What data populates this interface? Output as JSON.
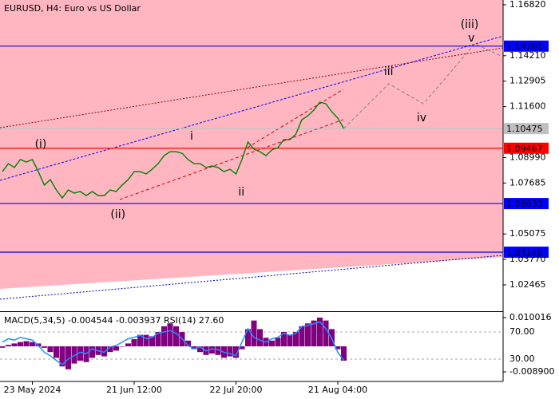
{
  "chart_data": [
    {
      "type": "line",
      "title": "EURUSD, H4:  Euro vs US Dollar",
      "color": "#008000",
      "categories": [
        null,
        null,
        null,
        null,
        null,
        "23 May 2024",
        null,
        null,
        null,
        null,
        null,
        null,
        null,
        null,
        null,
        null,
        null,
        null,
        null,
        null,
        null,
        null,
        "21 Jun 12:00",
        null,
        null,
        null,
        null,
        null,
        null,
        null,
        null,
        null,
        null,
        null,
        null,
        null,
        null,
        null,
        null,
        "22 Jul 20:00",
        null,
        null,
        null,
        null,
        null,
        null,
        null,
        null,
        null,
        null,
        null,
        null,
        null,
        null,
        null,
        null,
        "21 Aug 04:00",
        null
      ],
      "values": [
        1.0827,
        1.0868,
        1.0848,
        1.0889,
        1.0876,
        1.0889,
        1.0827,
        1.0758,
        1.0786,
        1.0733,
        1.0692,
        1.0733,
        1.0717,
        1.0725,
        1.0704,
        1.0725,
        1.0704,
        1.0704,
        1.0733,
        1.0725,
        1.0758,
        1.0786,
        1.0827,
        1.0827,
        1.0815,
        1.0839,
        1.0868,
        1.0909,
        1.0929,
        1.0929,
        1.0921,
        1.0889,
        1.0868,
        1.0868,
        1.0848,
        1.0856,
        1.0848,
        1.0827,
        1.0839,
        1.0815,
        1.0889,
        1.0979,
        1.0942,
        1.0929,
        1.0909,
        1.0938,
        1.095,
        1.0991,
        1.0991,
        1.1019,
        1.1093,
        1.1113,
        1.1142,
        1.1183,
        1.1175,
        1.1134,
        1.1101,
        1.1048
      ],
      "ylim": [
        1.01115,
        1.17065
      ],
      "yticks": [
        {
          "value": 1.1682,
          "label": "1.16820"
        },
        {
          "value": 1.1421,
          "label": "1.14210"
        },
        1.12905,
        {
          "value": 1.116,
          "label": "1.11600"
        },
        {
          "value": 1.0899,
          "label": "1.08990"
        },
        1.07685,
        1.05075,
        {
          "value": 1.0377,
          "label": "1.03770"
        },
        1.02465
      ],
      "grid": false,
      "zone": {
        "color": "#ffb6c1",
        "x": [
          -0.4,
          83.6
        ],
        "values": [
          1.0226,
          1.0389
        ]
      },
      "levels": [
        {
          "value": 1.14701,
          "color": "#0000ff"
        },
        {
          "value": 1.10475,
          "color": "#c0c0c0"
        },
        {
          "value": 1.09467,
          "color": "#ff0000"
        },
        {
          "value": 1.06633,
          "color": "#0000ff"
        },
        {
          "value": 1.0414,
          "label": "1.04140",
          "color": "#0000ff"
        }
      ],
      "lines": [
        {
          "color": "#0000ff",
          "dash": "3,2",
          "x": [
            -0.4,
            83.6
          ],
          "values": [
            1.0782,
            1.1522
          ]
        },
        {
          "color": "#8b0000",
          "dash": "2,2",
          "x": [
            -0.4,
            83.6
          ],
          "values": [
            1.1052,
            1.1461
          ]
        },
        {
          "color": "#0000aa",
          "dash": "2,2",
          "x": [
            -0.4,
            83.6
          ],
          "values": [
            1.0173,
            1.0398
          ]
        },
        {
          "color": "#cc0000",
          "dash": "4,3",
          "x": [
            19.6,
            56.9
          ],
          "values": [
            1.0684,
            1.1093
          ]
        },
        {
          "color": "#cc0000",
          "dash": "4,3",
          "x": [
            40.9,
            56.9
          ],
          "values": [
            1.095,
            1.1248
          ]
        },
        {
          "color": "#808080",
          "dash": "4,3",
          "x": [
            57,
            64.5,
            70.3,
            78.9,
            83.2
          ],
          "values": [
            1.1048,
            1.1277,
            1.1175,
            1.1482,
            1.142
          ]
        }
      ],
      "annotations": [
        {
          "text": "(i)",
          "x": 6.4,
          "y": 1.0966,
          "color": "#cc0000"
        },
        {
          "text": "i",
          "x": 31.6,
          "y": 1.1007,
          "color": "#808080"
        },
        {
          "text": "(ii)",
          "x": 19.3,
          "y": 1.0606,
          "color": "#cc0000"
        },
        {
          "text": "ii",
          "x": 39.9,
          "y": 1.0721,
          "color": "#808080"
        },
        {
          "text": "iii",
          "x": 64.5,
          "y": 1.1338,
          "color": "#808080"
        },
        {
          "text": "iv",
          "x": 70,
          "y": 1.1101,
          "color": "#808080"
        },
        {
          "text": "(iii)",
          "x": 78,
          "y": 1.158,
          "color": "#cc0000"
        },
        {
          "text": "v",
          "x": 78.3,
          "y": 1.151,
          "color": "#808080"
        }
      ]
    },
    {
      "type": "macd",
      "title": "MACD(5,34,5) -0.004544 -0.003937 RSI(14) 27.60",
      "ylim": [
        -0.012236,
        0.011962
      ],
      "yticks": [
        0.010016,
        {
          "value": -0.0089,
          "label": "-0.008900"
        }
      ],
      "y2lim": [
        -3,
        99.4
      ],
      "y2ticks": [
        {
          "value": 70,
          "label": "70.00"
        },
        {
          "value": 30,
          "label": "30.00"
        }
      ],
      "series": [
        {
          "color": "#800080",
          "values": [
            -0.0005,
            0.0005,
            0.001,
            0.0015,
            0.0018,
            0.0015,
            0.001,
            -0.0005,
            -0.002,
            -0.004,
            -0.007,
            -0.008,
            -0.006,
            -0.005,
            -0.0055,
            -0.004,
            -0.003,
            -0.0035,
            -0.002,
            -0.0015,
            0,
            0.001,
            0.0025,
            0.004,
            0.004,
            0.0035,
            0.005,
            0.007,
            0.008,
            0.007,
            0.005,
            0.002,
            -0.001,
            -0.002,
            -0.003,
            -0.0025,
            -0.003,
            -0.004,
            -0.0035,
            -0.004,
            -0.001,
            0.006,
            0.009,
            0.006,
            0.003,
            0.002,
            0.003,
            0.005,
            0.004,
            0.005,
            0.007,
            0.008,
            0.009,
            0.01,
            0.009,
            0.006,
            -0.001,
            -0.005
          ]
        },
        {
          "color": "#1e90ff",
          "axis": "y2",
          "values": [
            55,
            60,
            58,
            62,
            60,
            58,
            50,
            40,
            35,
            28,
            22,
            30,
            35,
            40,
            38,
            45,
            42,
            40,
            48,
            50,
            55,
            60,
            62,
            65,
            60,
            62,
            68,
            70,
            72,
            68,
            60,
            50,
            45,
            48,
            42,
            45,
            44,
            40,
            38,
            35,
            55,
            75,
            62,
            58,
            55,
            60,
            62,
            68,
            65,
            68,
            78,
            80,
            82,
            85,
            75,
            60,
            40,
            28
          ]
        }
      ]
    }
  ]
}
